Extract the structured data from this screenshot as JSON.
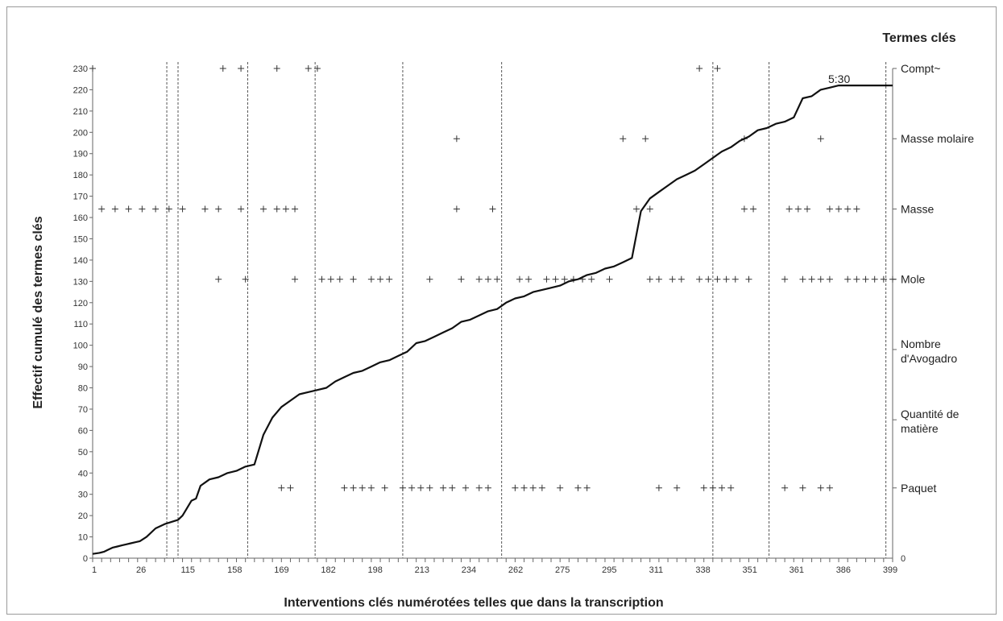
{
  "chart_data": {
    "type": "line",
    "title": "",
    "xlabel": "Interventions clés numérotées telles que dans la transcription",
    "ylabel": "Effectif cumulé des termes clés",
    "right_title": "Termes clés",
    "annotation": "5:30",
    "ylim": [
      0,
      230
    ],
    "yticks": [
      0,
      10,
      20,
      30,
      40,
      50,
      60,
      70,
      80,
      90,
      100,
      110,
      120,
      130,
      140,
      150,
      160,
      170,
      180,
      190,
      200,
      210,
      220,
      230
    ],
    "right_zero_label": "0",
    "x_tick_labels": [
      "1",
      "26",
      "115",
      "158",
      "169",
      "182",
      "198",
      "213",
      "234",
      "262",
      "275",
      "295",
      "311",
      "338",
      "351",
      "361",
      "386",
      "399"
    ],
    "x_range_positions": [
      0,
      112
    ],
    "grid": false,
    "terms": [
      {
        "label": "Compt~",
        "y": 230
      },
      {
        "label": "Masse molaire",
        "y": 197
      },
      {
        "label": "Masse",
        "y": 164
      },
      {
        "label": "Mole",
        "y": 131
      },
      {
        "label": "Nombre d'Avogadro",
        "y": 98
      },
      {
        "label": "Quantité de matière",
        "y": 65
      },
      {
        "label": "Paquet",
        "y": 33
      }
    ],
    "vertical_dividers_at_position": [
      16.5,
      19,
      34.5,
      49.5,
      69,
      91,
      138,
      150.5,
      176.5
    ],
    "markers": {
      "Compt~": [
        0,
        29,
        33,
        41,
        48,
        50,
        135,
        139
      ],
      "Masse molaire": [
        81,
        118,
        123,
        145,
        162
      ],
      "Masse": [
        2,
        5,
        8,
        11,
        14,
        17,
        20,
        25,
        28,
        33,
        38,
        41,
        43,
        45,
        81,
        89,
        121,
        124,
        145,
        147,
        155,
        157,
        159,
        164,
        166,
        168,
        170
      ],
      "Mole": [
        28,
        34,
        45,
        51,
        53,
        55,
        58,
        62,
        64,
        66,
        75,
        82,
        86,
        88,
        90,
        95,
        97,
        101,
        103,
        105,
        107,
        109,
        111,
        115,
        124,
        126,
        129,
        131,
        135,
        137,
        139,
        141,
        143,
        146,
        154,
        158,
        160,
        162,
        164,
        168,
        170,
        172,
        174,
        176,
        178
      ],
      "Paquet": [
        42,
        44,
        56,
        58,
        60,
        62,
        65,
        69,
        71,
        73,
        75,
        78,
        80,
        83,
        86,
        88,
        94,
        96,
        98,
        100,
        104,
        108,
        110,
        126,
        130,
        136,
        138,
        140,
        142,
        154,
        158,
        162,
        164
      ]
    },
    "series": [
      {
        "x": [
          0,
          1.5,
          2.5,
          3.5,
          4.5,
          5.5,
          6.5,
          7.5,
          8.5,
          9.5,
          10.5,
          12,
          14,
          16,
          17.5,
          19,
          20,
          22,
          23,
          24,
          26,
          28,
          30,
          32,
          34,
          36,
          38,
          40,
          42,
          44,
          46,
          48,
          50,
          52,
          54,
          56,
          58,
          60,
          62,
          64,
          66,
          68,
          70,
          72,
          74,
          76,
          78,
          80,
          82,
          84,
          86,
          88,
          90,
          92,
          94,
          96,
          98,
          100,
          102,
          104,
          106,
          108,
          110,
          112,
          114,
          116,
          118,
          120,
          122,
          124,
          126,
          128,
          130,
          132,
          134,
          136,
          138,
          140,
          142,
          144,
          146,
          148,
          150,
          152,
          154,
          156,
          158,
          160,
          162,
          164,
          166,
          168,
          170,
          172,
          174,
          176,
          178
        ],
        "y": [
          2,
          2.5,
          3,
          4,
          5,
          5.5,
          6,
          6.5,
          7,
          7.5,
          8,
          10,
          14,
          16,
          17,
          18,
          20,
          27,
          28,
          34,
          37,
          38,
          40,
          41,
          43,
          44,
          58,
          66,
          71,
          74,
          77,
          78,
          79,
          80,
          83,
          85,
          87,
          88,
          90,
          92,
          93,
          95,
          97,
          101,
          102,
          104,
          106,
          108,
          111,
          112,
          114,
          116,
          117,
          120,
          122,
          123,
          125,
          126,
          127,
          128,
          130,
          131,
          133,
          134,
          136,
          137,
          139,
          141,
          163,
          169,
          172,
          175,
          178,
          180,
          182,
          185,
          188,
          191,
          193,
          196,
          198,
          201,
          202,
          204,
          205,
          207,
          216,
          217,
          220,
          221,
          222,
          222,
          222,
          222,
          222,
          222,
          222
        ]
      }
    ]
  }
}
